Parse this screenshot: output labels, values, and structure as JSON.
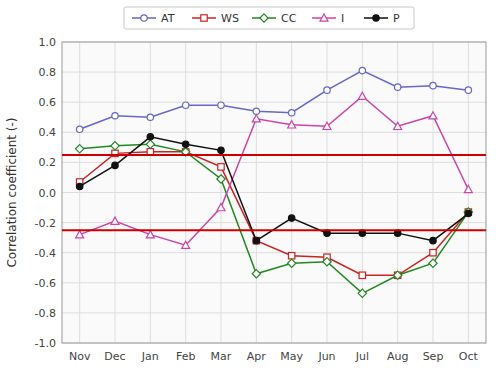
{
  "chart_data": {
    "type": "line",
    "categories": [
      "Nov",
      "Dec",
      "Jan",
      "Feb",
      "Mar",
      "Apr",
      "May",
      "Jun",
      "Jul",
      "Aug",
      "Sep",
      "Oct"
    ],
    "series": [
      {
        "name": "AT",
        "color": "#6666cc",
        "marker": "open-circle",
        "values": [
          0.42,
          0.51,
          0.5,
          0.58,
          0.58,
          0.54,
          0.53,
          0.68,
          0.81,
          0.7,
          0.71,
          0.68
        ]
      },
      {
        "name": "WS",
        "color": "#cc2222",
        "marker": "open-square",
        "values": [
          0.07,
          0.26,
          0.27,
          0.27,
          0.17,
          -0.32,
          -0.42,
          -0.43,
          -0.55,
          -0.55,
          -0.4,
          -0.13
        ]
      },
      {
        "name": "CC",
        "color": "#228822",
        "marker": "open-diamond",
        "values": [
          0.29,
          0.31,
          0.32,
          0.27,
          0.09,
          -0.54,
          -0.47,
          -0.46,
          -0.67,
          -0.55,
          -0.47,
          -0.13
        ]
      },
      {
        "name": "I",
        "color": "#cc44aa",
        "marker": "open-triangle",
        "values": [
          -0.28,
          -0.19,
          -0.28,
          -0.35,
          -0.1,
          0.49,
          0.45,
          0.44,
          0.64,
          0.44,
          0.51,
          0.02
        ]
      },
      {
        "name": "P",
        "color": "#111111",
        "marker": "circle",
        "values": [
          0.04,
          0.18,
          0.37,
          0.32,
          0.28,
          -0.32,
          -0.17,
          -0.27,
          -0.27,
          -0.27,
          -0.32,
          -0.14
        ]
      }
    ],
    "hlines": [
      {
        "value": 0.25,
        "color": "#cc0000"
      },
      {
        "value": -0.25,
        "color": "#cc0000"
      }
    ],
    "ylabel": "Correlation coefficient (-)",
    "ylim": [
      -1.0,
      1.0
    ],
    "yticks": [
      {
        "value": -1.0,
        "label": "-1.0"
      },
      -0.8,
      -0.6,
      -0.4,
      -0.2,
      {
        "value": 0.0,
        "label": "0.0"
      },
      0.2,
      0.4,
      0.6,
      0.8,
      {
        "value": 1.0,
        "label": "1.0"
      }
    ],
    "grid": true,
    "legend": "top"
  }
}
